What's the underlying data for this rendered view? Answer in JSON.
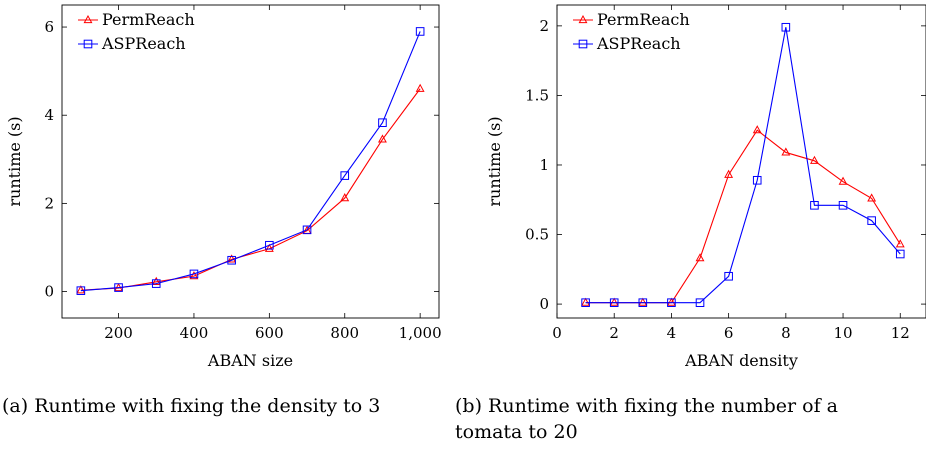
{
  "chart_data": [
    {
      "type": "line",
      "xlabel": "ABAN size",
      "ylabel": "runtime (s)",
      "xlim": [
        50,
        1050
      ],
      "ylim": [
        -0.6,
        6.5
      ],
      "xticks": [
        200,
        400,
        600,
        800,
        1000
      ],
      "xtick_labels": [
        "200",
        "400",
        "600",
        "800",
        "1,000"
      ],
      "yticks": [
        0,
        2,
        4,
        6
      ],
      "ytick_labels": [
        "0",
        "2",
        "4",
        "6"
      ],
      "legend_position": "top-left",
      "grid": false,
      "series": [
        {
          "name": "PermReach",
          "color": "#ff0000",
          "marker": "triangle",
          "x": [
            100,
            200,
            300,
            400,
            500,
            600,
            700,
            800,
            900,
            1000
          ],
          "y": [
            0.03,
            0.08,
            0.22,
            0.35,
            0.73,
            0.97,
            1.38,
            2.12,
            3.45,
            4.6
          ]
        },
        {
          "name": "ASPReach",
          "color": "#0000ff",
          "marker": "square",
          "x": [
            100,
            200,
            300,
            400,
            500,
            600,
            700,
            800,
            900,
            1000
          ],
          "y": [
            0.02,
            0.09,
            0.18,
            0.4,
            0.71,
            1.05,
            1.4,
            2.63,
            3.83,
            5.9
          ]
        }
      ]
    },
    {
      "type": "line",
      "xlabel": "ABAN density",
      "ylabel": "runtime (s)",
      "xlim": [
        0,
        12.9
      ],
      "ylim": [
        -0.1,
        2.15
      ],
      "xticks": [
        0,
        2,
        4,
        6,
        8,
        10,
        12
      ],
      "xtick_labels": [
        "0",
        "2",
        "4",
        "6",
        "8",
        "10",
        "12"
      ],
      "yticks": [
        0,
        0.5,
        1,
        1.5,
        2
      ],
      "ytick_labels": [
        "0",
        "0.5",
        "1",
        "1.5",
        "2"
      ],
      "legend_position": "top-left",
      "grid": false,
      "series": [
        {
          "name": "PermReach",
          "color": "#ff0000",
          "marker": "triangle",
          "x": [
            1,
            2,
            3,
            4,
            5,
            6,
            7,
            8,
            9,
            10,
            11,
            12
          ],
          "y": [
            0.01,
            0.01,
            0.01,
            0.01,
            0.33,
            0.93,
            1.25,
            1.09,
            1.03,
            0.88,
            0.76,
            0.43
          ]
        },
        {
          "name": "ASPReach",
          "color": "#0000ff",
          "marker": "square",
          "x": [
            1,
            2,
            3,
            4,
            5,
            6,
            7,
            8,
            9,
            10,
            11,
            12
          ],
          "y": [
            0.01,
            0.01,
            0.01,
            0.01,
            0.01,
            0.2,
            0.89,
            1.99,
            0.71,
            0.71,
            0.6,
            0.36
          ]
        }
      ]
    }
  ],
  "captions": {
    "a_line1": "(a) Runtime with fixing the density to 3",
    "b_line1": "(b) Runtime with fixing the number of a",
    "b_line2": "tomata to 20"
  }
}
